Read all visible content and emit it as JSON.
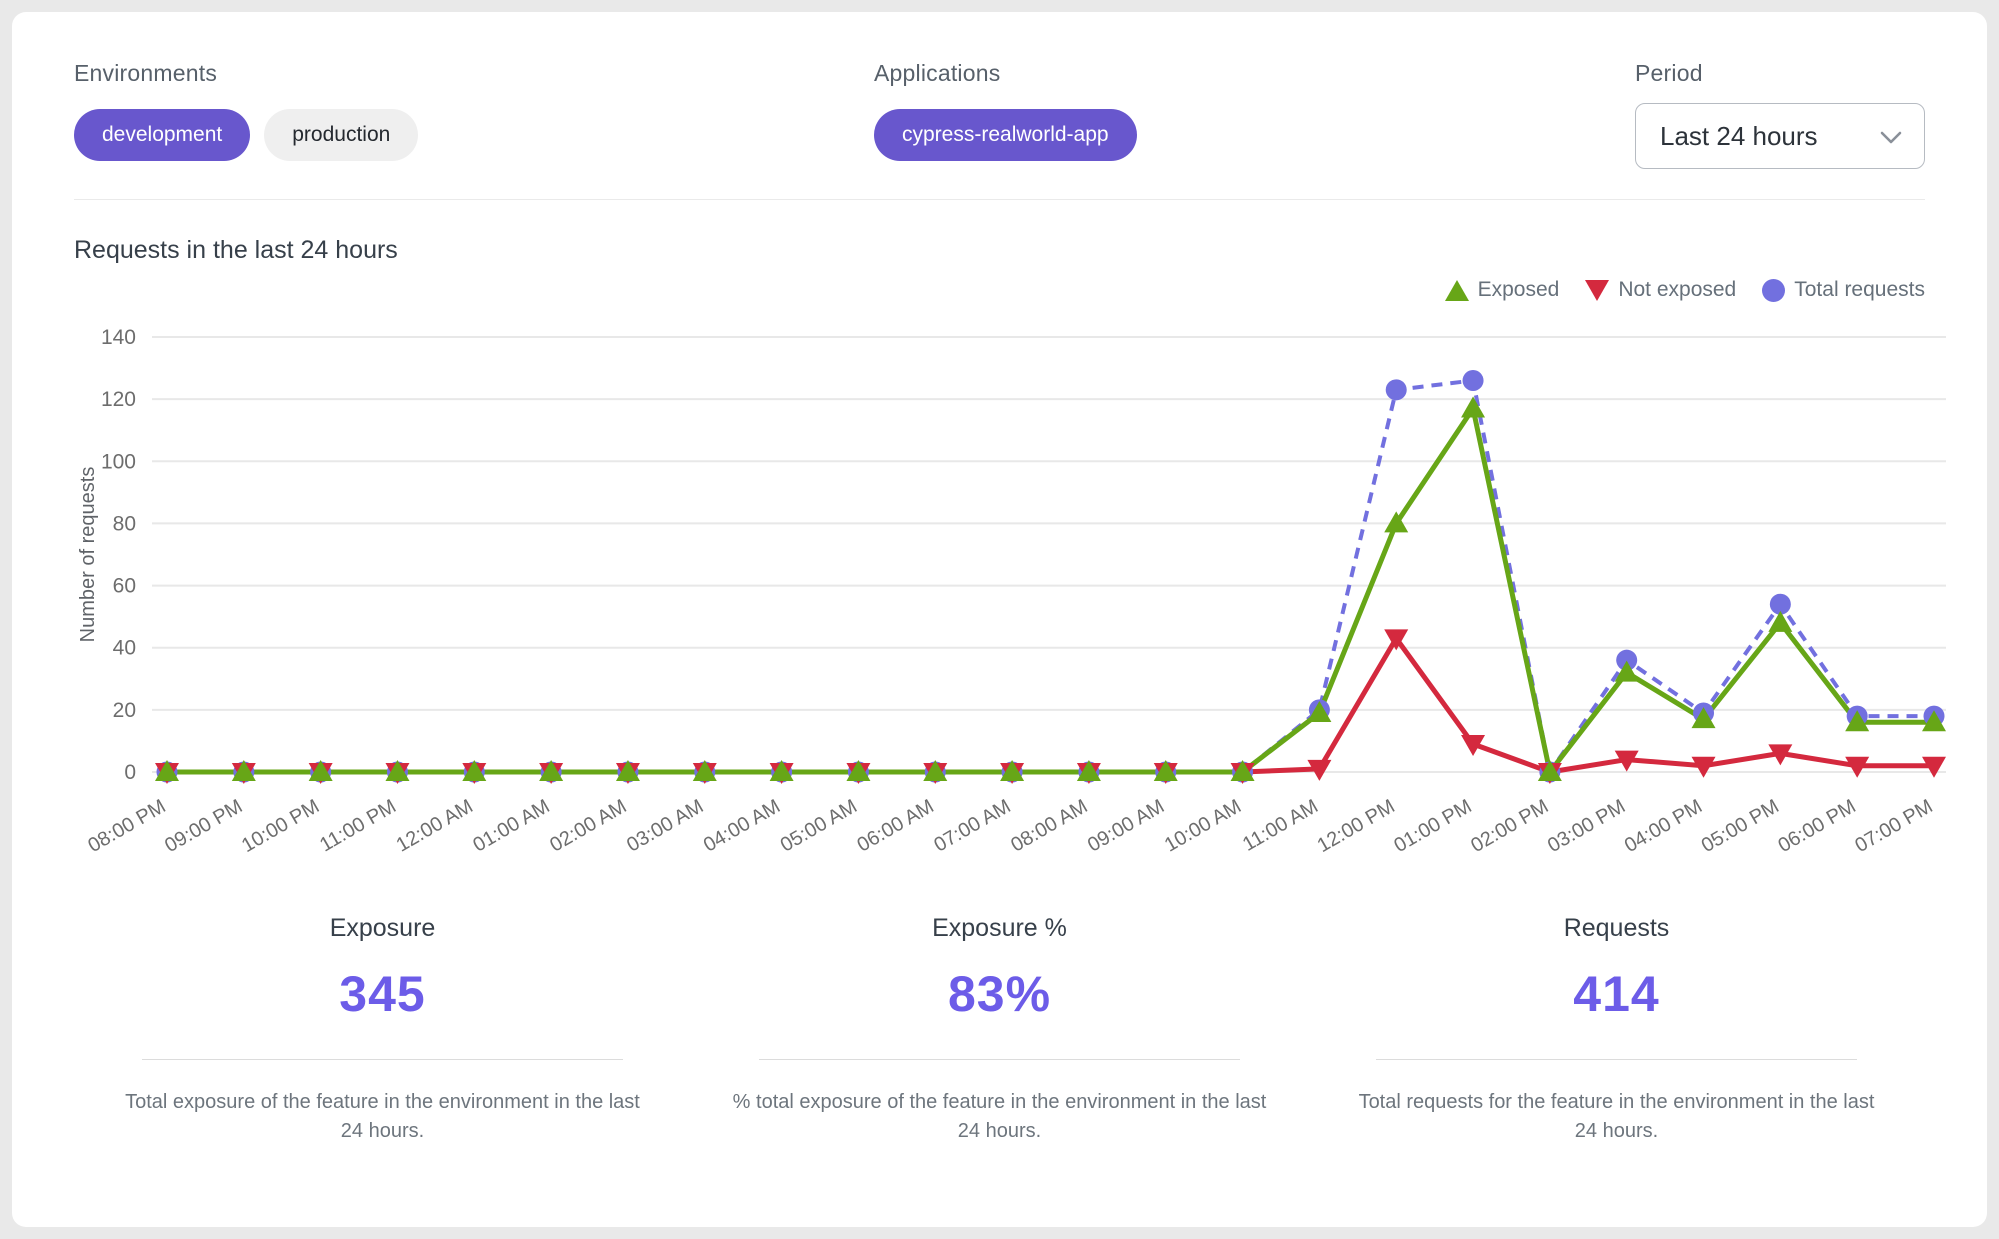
{
  "filters": {
    "environments": {
      "label": "Environments",
      "chips": [
        {
          "label": "development",
          "selected": true
        },
        {
          "label": "production",
          "selected": false
        }
      ]
    },
    "applications": {
      "label": "Applications",
      "chips": [
        {
          "label": "cypress-realworld-app",
          "selected": true
        }
      ]
    },
    "period": {
      "label": "Period",
      "value": "Last 24 hours"
    }
  },
  "chart_title": "Requests in the last 24 hours",
  "chart_data": {
    "type": "line",
    "title": "Requests in the last 24 hours",
    "xlabel": "",
    "ylabel": "Number of requests",
    "ylim": [
      0,
      140
    ],
    "y_ticks": [
      0,
      20,
      40,
      60,
      80,
      100,
      120,
      140
    ],
    "grid": true,
    "legend_position": "top-right",
    "categories": [
      "08:00 PM",
      "09:00 PM",
      "10:00 PM",
      "11:00 PM",
      "12:00 AM",
      "01:00 AM",
      "02:00 AM",
      "03:00 AM",
      "04:00 AM",
      "05:00 AM",
      "06:00 AM",
      "07:00 AM",
      "08:00 AM",
      "09:00 AM",
      "10:00 AM",
      "11:00 AM",
      "12:00 PM",
      "01:00 PM",
      "02:00 PM",
      "03:00 PM",
      "04:00 PM",
      "05:00 PM",
      "06:00 PM",
      "07:00 PM"
    ],
    "series": [
      {
        "name": "Exposed",
        "marker": "triangle-up",
        "line": "solid",
        "color": "#67a617",
        "values": [
          0,
          0,
          0,
          0,
          0,
          0,
          0,
          0,
          0,
          0,
          0,
          0,
          0,
          0,
          0,
          19,
          80,
          117,
          0,
          32,
          17,
          48,
          16,
          16
        ]
      },
      {
        "name": "Not exposed",
        "marker": "triangle-down",
        "line": "solid",
        "color": "#d4293e",
        "values": [
          0,
          0,
          0,
          0,
          0,
          0,
          0,
          0,
          0,
          0,
          0,
          0,
          0,
          0,
          0,
          1,
          43,
          9,
          0,
          4,
          2,
          6,
          2,
          2
        ]
      },
      {
        "name": "Total requests",
        "marker": "circle",
        "line": "dashed",
        "color": "#7270df",
        "values": [
          0,
          0,
          0,
          0,
          0,
          0,
          0,
          0,
          0,
          0,
          0,
          0,
          0,
          0,
          0,
          20,
          123,
          126,
          0,
          36,
          19,
          54,
          18,
          18
        ]
      }
    ]
  },
  "stats": [
    {
      "title": "Exposure",
      "value": "345",
      "description": "Total exposure of the feature in the environment in the last 24 hours."
    },
    {
      "title": "Exposure %",
      "value": "83%",
      "description": "% total exposure of the feature in the environment in the last 24 hours."
    },
    {
      "title": "Requests",
      "value": "414",
      "description": "Total requests for the feature in the environment in the last 24 hours."
    }
  ],
  "colors": {
    "accent": "#6857cd",
    "stat_value": "#6c5ce8",
    "exposed": "#67a617",
    "not_exposed": "#d4293e",
    "total_requests": "#7270df"
  }
}
